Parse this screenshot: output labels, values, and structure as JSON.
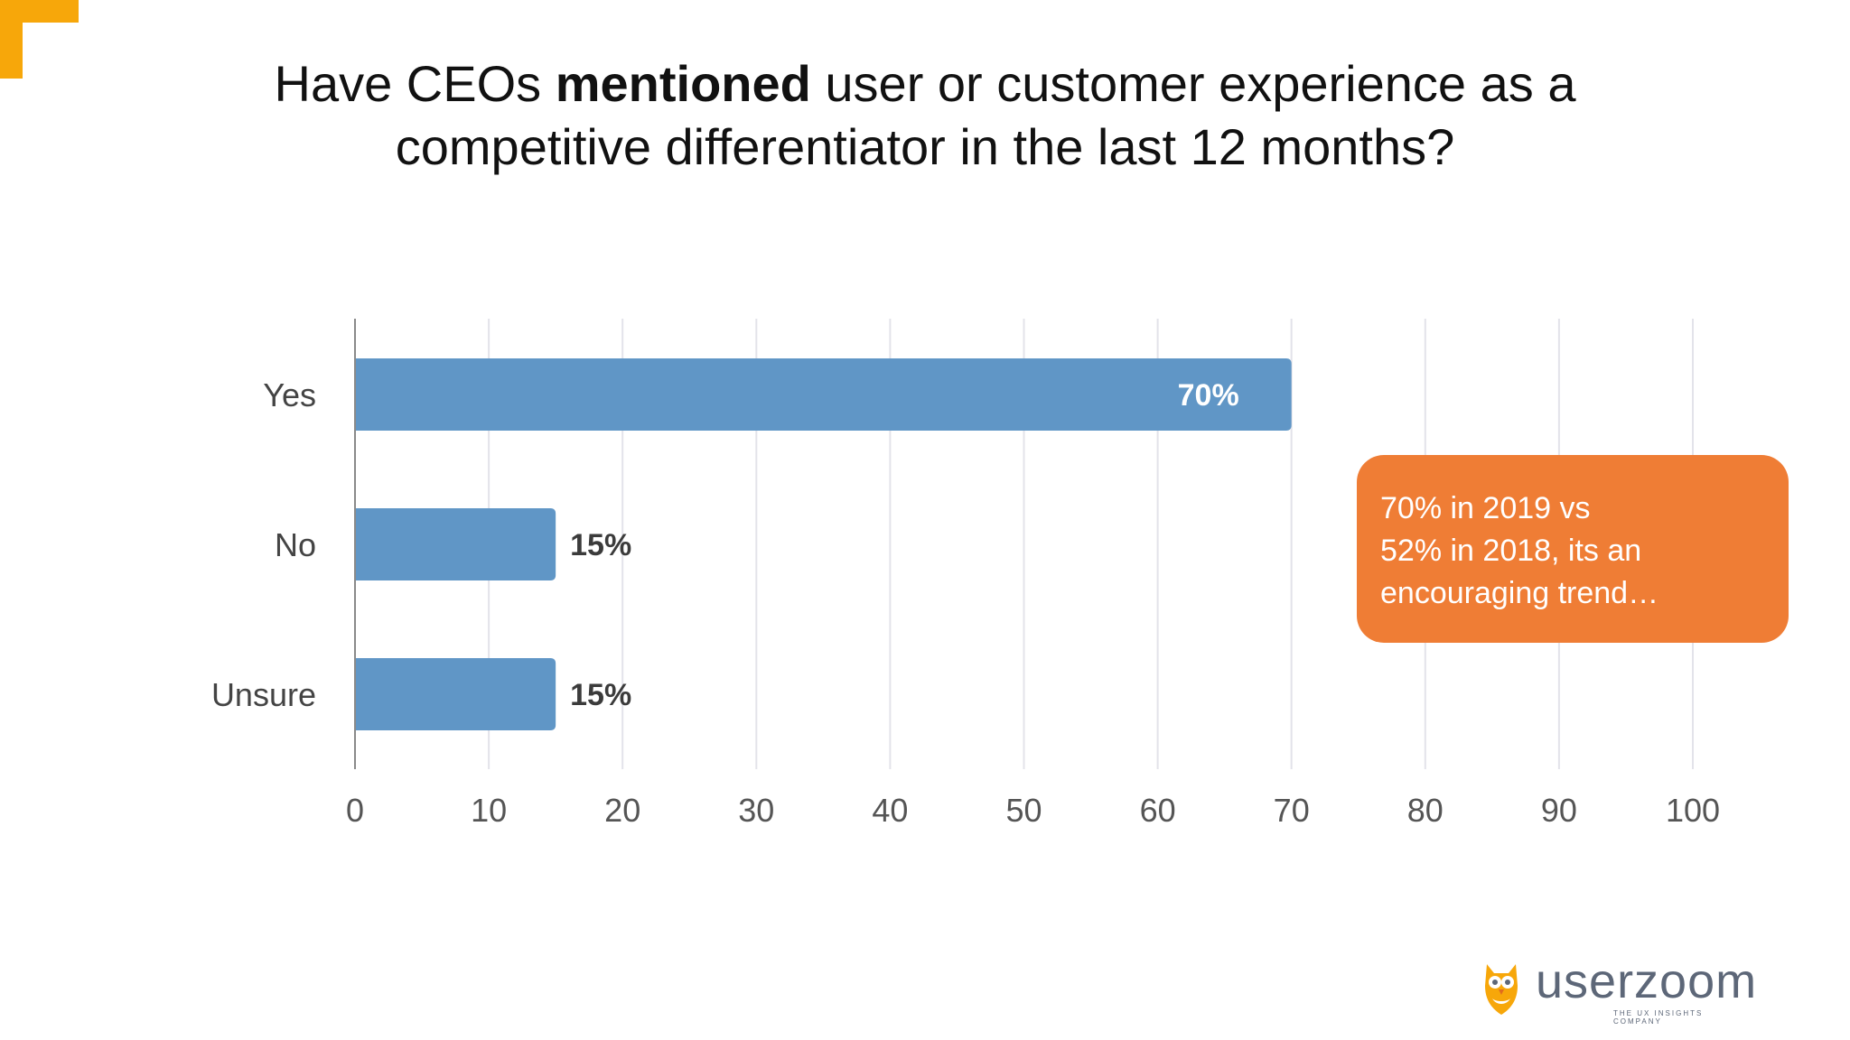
{
  "title": {
    "line1_pre": "Have CEOs ",
    "line1_bold": "mentioned",
    "line1_post": " user or customer experience as a",
    "line2": "competitive differentiator in the last 12 months?"
  },
  "chart_data": {
    "type": "bar",
    "orientation": "horizontal",
    "title": "",
    "xlabel": "",
    "ylabel": "",
    "categories": [
      "Yes",
      "No",
      "Unsure"
    ],
    "values": [
      70,
      15,
      15
    ],
    "data_labels": [
      "70%",
      "15%",
      "15%"
    ],
    "xlim": [
      0,
      100
    ],
    "xticks": [
      0,
      10,
      20,
      30,
      40,
      50,
      60,
      70,
      80,
      90,
      100
    ],
    "grid": "vertical",
    "bar_color": "#6096c6",
    "grid_color": "#e3e3ea",
    "axis_color": "#8a8a8a"
  },
  "callout": {
    "lines": [
      "70% in 2019 vs",
      "52% in 2018, its an",
      "encouraging trend…"
    ],
    "color": "#ef7d35"
  },
  "brand": {
    "name": "userzoom",
    "tagline": "THE UX INSIGHTS COMPANY",
    "logo_icon": "owl-icon",
    "color": "#5d6778"
  },
  "accent_color": "#f7a70a"
}
